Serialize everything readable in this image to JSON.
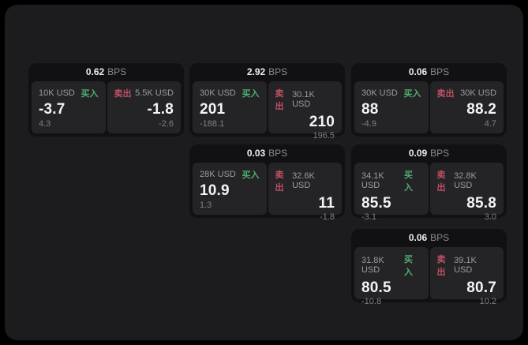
{
  "labels": {
    "bps_unit": "BPS",
    "buy": "买入",
    "sell": "卖出"
  },
  "colors": {
    "background": "#000000",
    "panel_background": "#1c1c1e",
    "card_background": "#111113",
    "tile_background": "#242427",
    "buy_green": "#4fae6e",
    "sell_red": "#c04f63",
    "value_white": "#f4f4f5",
    "muted_gray": "#9b9ca0",
    "dim_gray": "#7e7f83"
  },
  "cards": [
    {
      "bps": "0.62",
      "buy": {
        "amount": "10K USD",
        "price": "-3.7",
        "change": "4.3"
      },
      "sell": {
        "amount": "5.5K USD",
        "price": "-1.8",
        "change": "-2.6"
      }
    },
    {
      "bps": "2.92",
      "buy": {
        "amount": "30K USD",
        "price": "201",
        "change": "-188.1"
      },
      "sell": {
        "amount": "30.1K USD",
        "price": "210",
        "change": "196.5"
      }
    },
    {
      "bps": "0.06",
      "buy": {
        "amount": "30K USD",
        "price": "88",
        "change": "-4.9"
      },
      "sell": {
        "amount": "30K USD",
        "price": "88.2",
        "change": "4.7"
      }
    },
    {
      "bps": "0.03",
      "buy": {
        "amount": "28K USD",
        "price": "10.9",
        "change": "1.3"
      },
      "sell": {
        "amount": "32.6K USD",
        "price": "11",
        "change": "-1.8"
      }
    },
    {
      "bps": "0.09",
      "buy": {
        "amount": "34.1K USD",
        "price": "85.5",
        "change": "-3.1"
      },
      "sell": {
        "amount": "32.8K USD",
        "price": "85.8",
        "change": "3.0"
      }
    },
    {
      "bps": "0.06",
      "buy": {
        "amount": "31.8K USD",
        "price": "80.5",
        "change": "-10.8"
      },
      "sell": {
        "amount": "39.1K USD",
        "price": "80.7",
        "change": "10.2"
      }
    }
  ]
}
